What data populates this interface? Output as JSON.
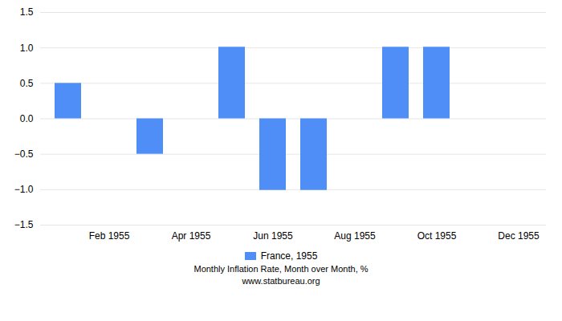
{
  "chart_data": {
    "type": "bar",
    "categories": [
      null,
      "Feb 1955",
      null,
      "Apr 1955",
      null,
      "Jun 1955",
      null,
      "Aug 1955",
      null,
      "Oct 1955",
      null,
      "Dec 1955"
    ],
    "series": [
      {
        "name": "France, 1955",
        "color": "#4f8ef7",
        "values": [
          0.5,
          0.0,
          -0.5,
          0.0,
          1.01,
          -1.01,
          -1.01,
          0.0,
          1.01,
          1.01,
          0.0,
          0.0
        ]
      }
    ],
    "ylim": [
      -1.5,
      1.5
    ],
    "yticks": [
      {
        "value": -1.5,
        "label": "−1.5"
      },
      {
        "value": -1.0,
        "label": "−1.0"
      },
      {
        "value": -0.5,
        "label": "−0.5"
      },
      {
        "value": 0.0,
        "label": "0.0"
      },
      0.5,
      {
        "value": 1.0,
        "label": "1.0"
      },
      1.5
    ],
    "grid": true,
    "legend": "bottom",
    "annotations": [
      "Monthly Inflation Rate, Month over Month, %",
      "www.statbureau.org"
    ]
  }
}
